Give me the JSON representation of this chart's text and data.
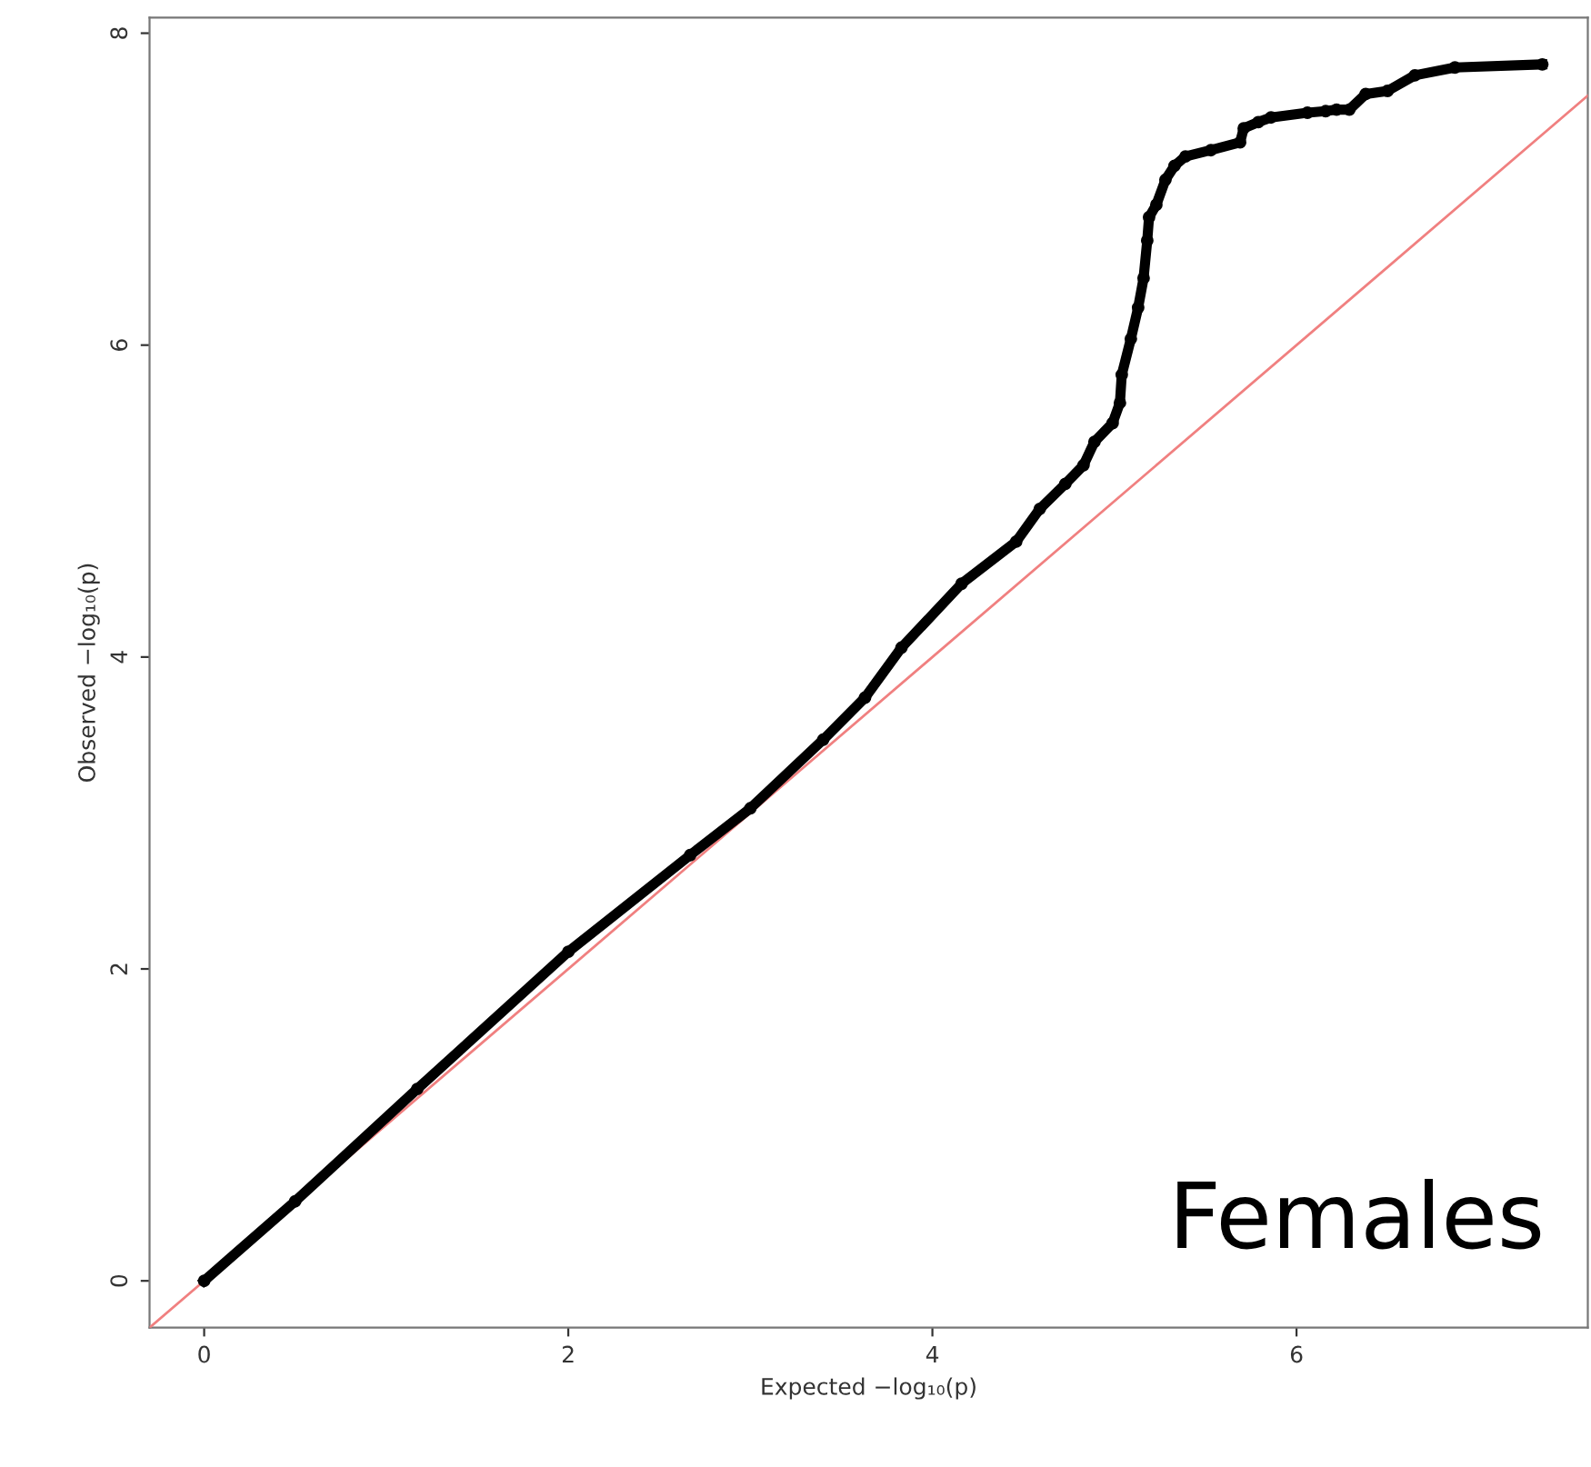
{
  "chart_data": {
    "type": "line",
    "xlabel": "Expected −log₁₀(p)",
    "ylabel": "Observed −log₁₀(p)",
    "annotations": [
      "Females"
    ],
    "xlim": [
      -0.3,
      7.6
    ],
    "ylim": [
      -0.3,
      8.1
    ],
    "xticks": [
      0,
      2,
      4,
      6
    ],
    "yticks": [
      0,
      2,
      4,
      6,
      8
    ],
    "grid": false,
    "marker": "circle",
    "series": [
      {
        "color": "#000000",
        "x": [
          0,
          0.5,
          1.17,
          2.0,
          2.67,
          3.0,
          3.4,
          3.63,
          3.83,
          4.16,
          4.46,
          4.59,
          4.73,
          4.83,
          4.89,
          4.99,
          5.03,
          5.04,
          5.09,
          5.13,
          5.16,
          5.18,
          5.19,
          5.23,
          5.28,
          5.33,
          5.39,
          5.53,
          5.69,
          5.71,
          5.79,
          5.86,
          6.06,
          6.16,
          6.22,
          6.29,
          6.38,
          6.5,
          6.65,
          6.87,
          7.35
        ],
        "values": [
          0,
          0.51,
          1.23,
          2.11,
          2.73,
          3.03,
          3.47,
          3.74,
          4.06,
          4.47,
          4.74,
          4.95,
          5.11,
          5.23,
          5.38,
          5.5,
          5.63,
          5.81,
          6.04,
          6.24,
          6.43,
          6.67,
          6.82,
          6.9,
          7.06,
          7.15,
          7.21,
          7.25,
          7.3,
          7.39,
          7.43,
          7.46,
          7.49,
          7.5,
          7.51,
          7.51,
          7.61,
          7.63,
          7.73,
          7.78,
          7.8
        ]
      },
      {
        "type": "line",
        "color": "#f08080",
        "marker": "none",
        "x": [
          -0.3,
          7.6
        ],
        "values": [
          -0.3,
          7.6
        ]
      }
    ]
  }
}
